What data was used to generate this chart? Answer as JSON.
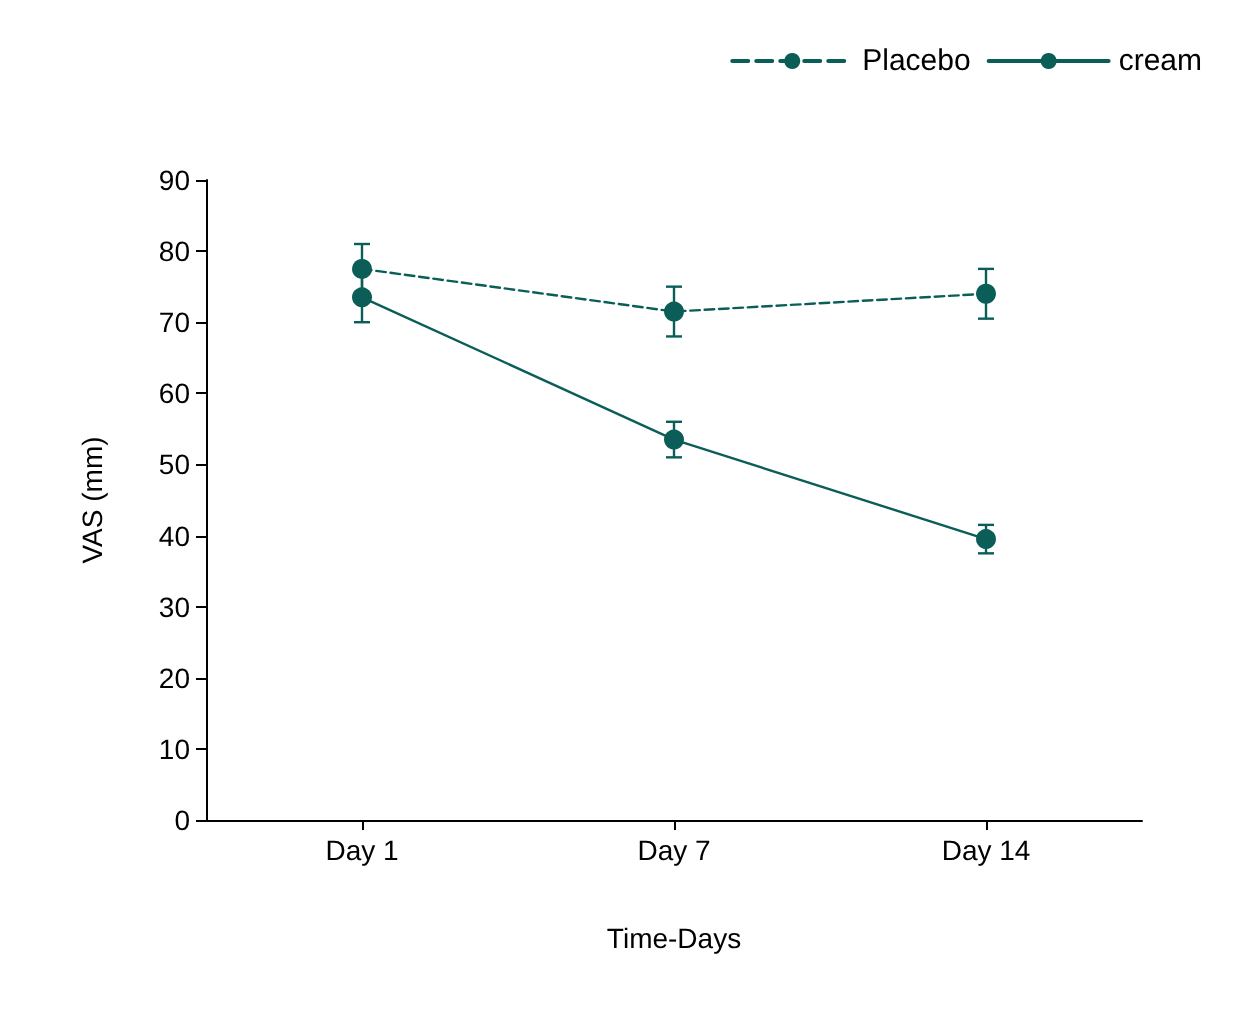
{
  "chart_data": {
    "type": "line",
    "xlabel": "Time-Days",
    "ylabel": "VAS (mm)",
    "categories": [
      "Day 1",
      "Day 7",
      "Day 14"
    ],
    "series": [
      {
        "name": "Placebo",
        "color": "#0b5e57",
        "line_style": "dashed",
        "values": [
          77.5,
          71.5,
          74
        ],
        "errors": [
          3.5,
          3.5,
          3.5
        ]
      },
      {
        "name": "cream",
        "color": "#0b5e57",
        "line_style": "solid",
        "values": [
          73.5,
          53.5,
          39.5
        ],
        "errors": [
          3.5,
          2.5,
          2
        ]
      }
    ],
    "ylim": [
      0,
      90
    ],
    "yticks": [
      0,
      10,
      20,
      30,
      40,
      50,
      60,
      70,
      80,
      90
    ],
    "grid": false,
    "legend": "top right",
    "marker": "circle"
  }
}
